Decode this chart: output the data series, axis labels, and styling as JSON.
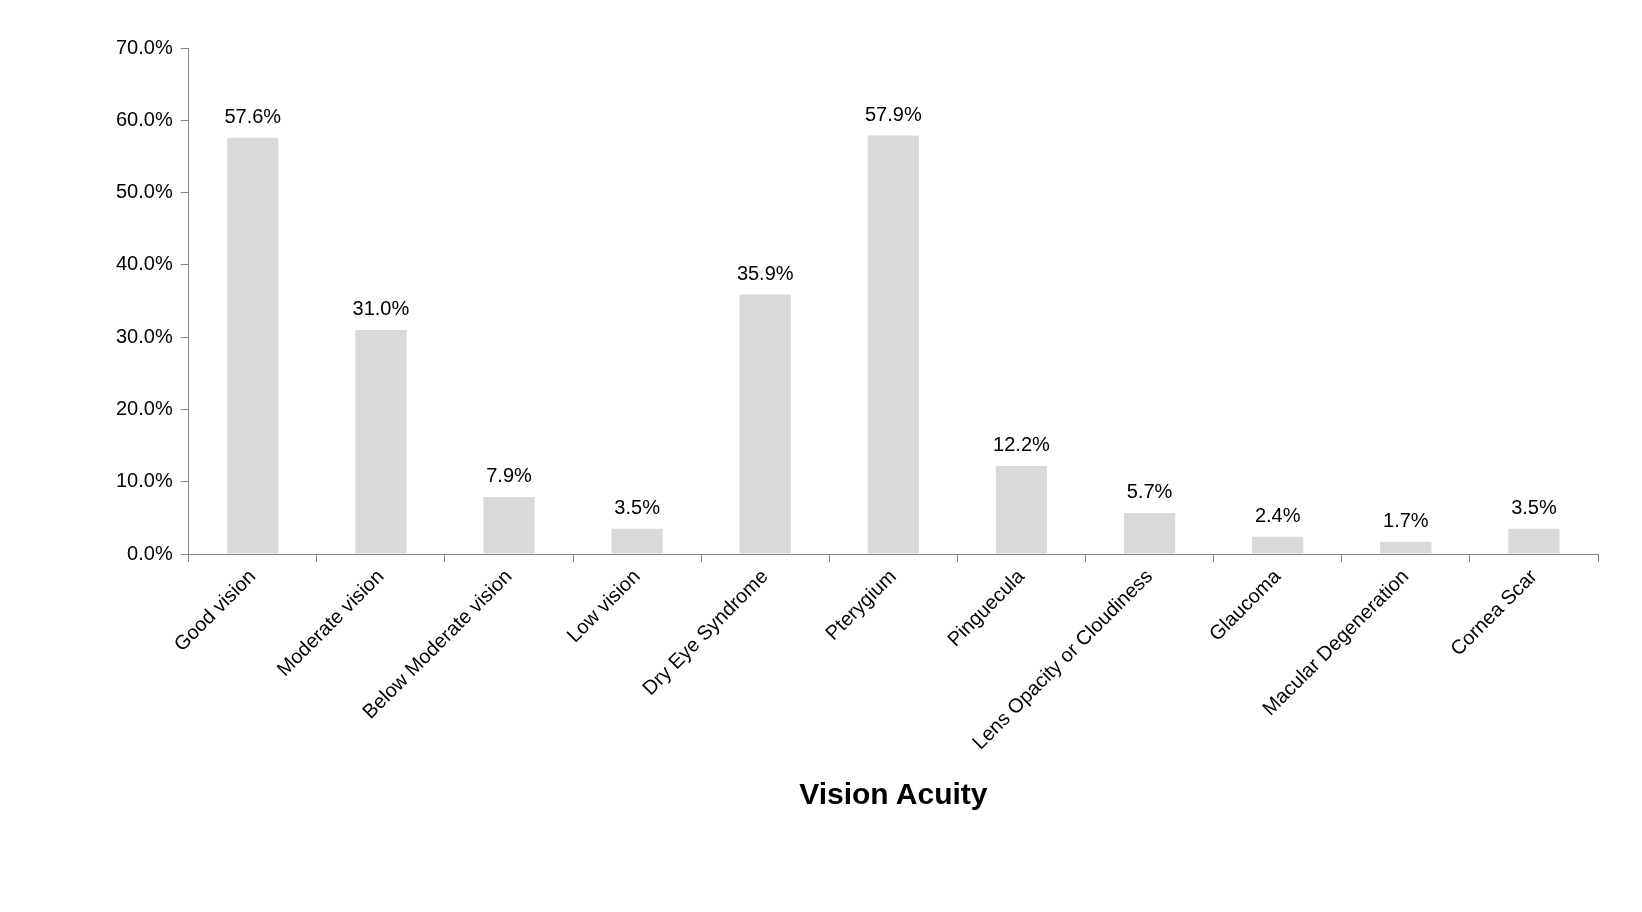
{
  "chart_data": {
    "type": "bar",
    "xlabel": "Vision Acuity",
    "categories": [
      "Good vision",
      "Moderate vision",
      "Below Moderate vision",
      "Low vision",
      "Dry Eye Syndrome",
      "Pterygium",
      "Pinguecula",
      "Lens Opacity or Cloudiness",
      "Glaucoma",
      "Macular Degeneration",
      "Cornea Scar"
    ],
    "values": [
      57.6,
      31.0,
      7.9,
      3.5,
      35.9,
      57.9,
      12.2,
      5.7,
      2.4,
      1.7,
      3.5
    ],
    "value_labels": [
      "57.6%",
      "31.0%",
      "7.9%",
      "3.5%",
      "35.9%",
      "57.9%",
      "12.2%",
      "5.7%",
      "2.4%",
      "1.7%",
      "3.5%"
    ],
    "color": "#d9d9d9",
    "ylim": [
      0,
      70
    ],
    "yticks": [
      {
        "value": 0,
        "label": "0.0%"
      },
      {
        "value": 10,
        "label": "10.0%"
      },
      {
        "value": 20,
        "label": "20.0%"
      },
      {
        "value": 30,
        "label": "30.0%"
      },
      {
        "value": 40,
        "label": "40.0%"
      },
      {
        "value": 50,
        "label": "50.0%"
      },
      {
        "value": 60,
        "label": "60.0%"
      },
      {
        "value": 70,
        "label": "70.0%"
      }
    ],
    "grid": false,
    "legend": false
  }
}
